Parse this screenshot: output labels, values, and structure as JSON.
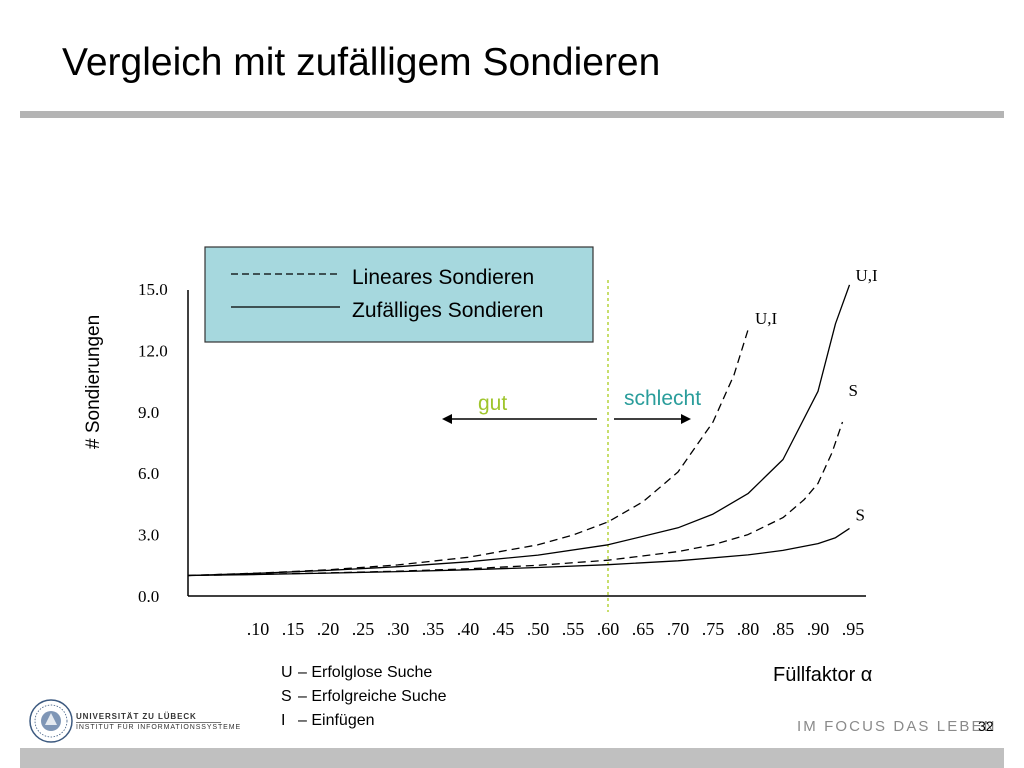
{
  "slide": {
    "title": "Vergleich mit zufälligem Sondieren",
    "page_number": "32",
    "slogan": "IM FOCUS DAS LEBEN",
    "university": "UNIVERSITÄT ZU LÜBECK",
    "institute": "INSTITUT FÜR INFORMATIONSSYSTEME"
  },
  "chart_data": {
    "type": "line",
    "ylabel": "# Sondierungen",
    "xlabel": "Füllfaktor α",
    "y_ticks": [
      "15.0",
      "12.0",
      "9.0",
      "6.0",
      "3.0",
      "0.0"
    ],
    "x_ticks": [
      ".10",
      ".15",
      ".20",
      ".25",
      ".30",
      ".35",
      ".40",
      ".45",
      ".50",
      ".55",
      ".60",
      ".65",
      ".70",
      ".75",
      ".80",
      ".85",
      ".90",
      ".95"
    ],
    "ylim": [
      0,
      15
    ],
    "xlim": [
      0,
      0.95
    ],
    "legend": [
      {
        "label": "Lineares Sondieren",
        "style": "dashed"
      },
      {
        "label": "Zufälliges Sondieren",
        "style": "solid"
      }
    ],
    "legend_background": "#a6d8de",
    "series": [
      {
        "label": "U,I",
        "style": "dashed",
        "x": [
          0,
          0.1,
          0.2,
          0.3,
          0.4,
          0.5,
          0.55,
          0.6,
          0.65,
          0.7,
          0.75,
          0.78,
          0.8
        ],
        "y": [
          1.0,
          1.12,
          1.28,
          1.52,
          1.89,
          2.5,
          2.98,
          3.62,
          4.6,
          6.06,
          8.5,
          10.8,
          13.0
        ]
      },
      {
        "label": "U,I",
        "style": "solid",
        "x": [
          0,
          0.1,
          0.2,
          0.3,
          0.4,
          0.5,
          0.6,
          0.7,
          0.75,
          0.8,
          0.85,
          0.9,
          0.925,
          0.945
        ],
        "y": [
          1.0,
          1.11,
          1.25,
          1.43,
          1.67,
          2.0,
          2.5,
          3.33,
          4.0,
          5.0,
          6.67,
          10.0,
          13.3,
          15.2
        ]
      },
      {
        "label": "S",
        "style": "dashed",
        "x": [
          0,
          0.1,
          0.2,
          0.3,
          0.4,
          0.5,
          0.6,
          0.7,
          0.75,
          0.8,
          0.85,
          0.88,
          0.9,
          0.92,
          0.935
        ],
        "y": [
          1.0,
          1.06,
          1.13,
          1.21,
          1.33,
          1.5,
          1.75,
          2.17,
          2.5,
          3.0,
          3.83,
          4.7,
          5.5,
          7.0,
          8.5
        ]
      },
      {
        "label": "S",
        "style": "solid",
        "x": [
          0,
          0.1,
          0.2,
          0.3,
          0.4,
          0.5,
          0.6,
          0.7,
          0.8,
          0.85,
          0.9,
          0.925,
          0.945
        ],
        "y": [
          1.0,
          1.05,
          1.12,
          1.19,
          1.28,
          1.39,
          1.53,
          1.72,
          2.01,
          2.23,
          2.56,
          2.85,
          3.3
        ]
      }
    ],
    "threshold": {
      "x": 0.6,
      "color": "#b5d33c",
      "style": "dotted"
    },
    "annotations": {
      "left_label": "gut",
      "left_color": "#9fc52c",
      "right_label": "schlecht",
      "right_color": "#2a9d9b"
    },
    "footnotes": [
      {
        "key": "U",
        "text": "– Erfolglose Suche"
      },
      {
        "key": "S",
        "text": "– Erfolgreiche Suche"
      },
      {
        "key": "I",
        "text": "– Einfügen"
      }
    ]
  }
}
